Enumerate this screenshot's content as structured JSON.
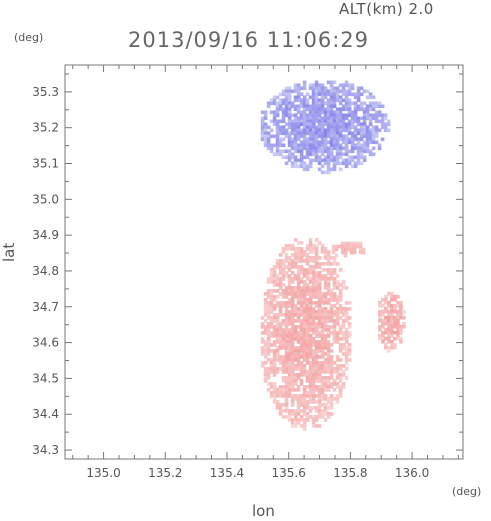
{
  "header": {
    "altitude_label": "ALT(km)  2.0",
    "datetime": "2013/09/16 11:06:29"
  },
  "chart_data": {
    "type": "heatmap",
    "title": "2013/09/16 11:06:29",
    "xlabel": "lon",
    "ylabel": "lat",
    "x_unit": "(deg)",
    "y_unit": "(deg)",
    "xlim": [
      134.875,
      136.165
    ],
    "ylim": [
      34.275,
      35.375
    ],
    "x_ticks": [
      135.0,
      135.2,
      135.4,
      135.6,
      135.8,
      136.0
    ],
    "x_tick_labels": [
      "135.0",
      "135.2",
      "135.4",
      "135.6",
      "135.8",
      "136.0"
    ],
    "y_ticks": [
      34.3,
      34.4,
      34.5,
      34.6,
      34.7,
      34.8,
      34.9,
      35.0,
      35.1,
      35.2,
      35.3
    ],
    "y_tick_labels": [
      "34.3",
      "34.4",
      "34.5",
      "34.6",
      "34.7",
      "34.8",
      "34.9",
      "35.0",
      "35.1",
      "35.2",
      "35.3"
    ],
    "grid": false,
    "colors": {
      "approaching": "#7878e6",
      "receding": "#f08c8c",
      "axis": "#777777"
    },
    "regions": [
      {
        "name": "north-blue-echo",
        "sign": "negative",
        "lon_range": [
          135.5,
          135.92
        ],
        "lat_range": [
          35.08,
          35.34
        ],
        "intensity": 0.75
      },
      {
        "name": "central-red-echo",
        "sign": "positive",
        "lon_range": [
          135.5,
          135.8
        ],
        "lat_range": [
          34.36,
          34.9
        ],
        "intensity": 0.5
      },
      {
        "name": "east-red-echo",
        "sign": "positive",
        "lon_range": [
          135.88,
          135.97
        ],
        "lat_range": [
          34.58,
          34.75
        ],
        "intensity": 0.6
      },
      {
        "name": "small-red-echo",
        "sign": "positive",
        "lon_range": [
          135.73,
          135.85
        ],
        "lat_range": [
          34.84,
          34.89
        ],
        "intensity": 0.3
      }
    ]
  }
}
